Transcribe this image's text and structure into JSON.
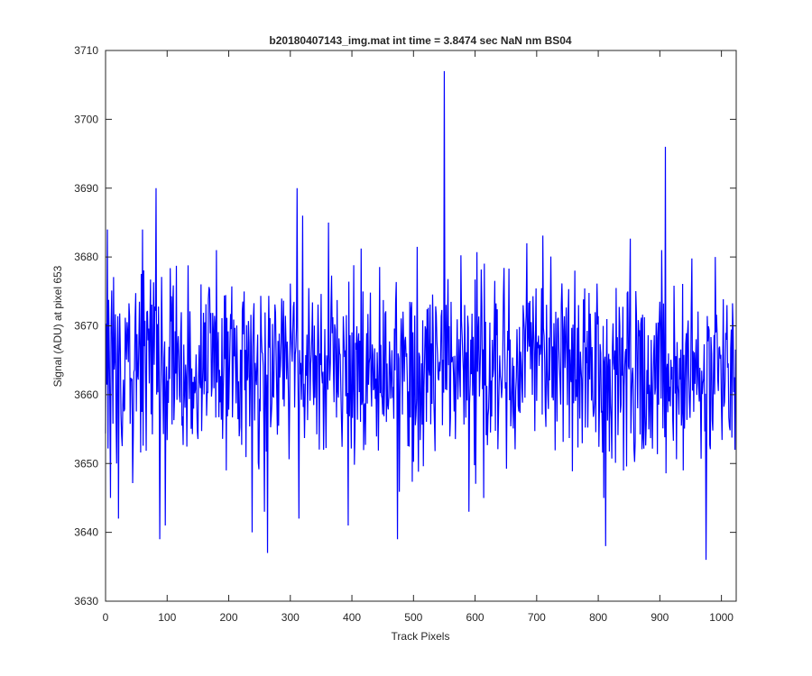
{
  "chart_data": {
    "type": "line",
    "title": "b20180407143_img.mat int time = 3.8474 sec  NaN nm BS04",
    "xlabel": "Track Pixels",
    "ylabel": "Signal (ADU) at pixel 653",
    "xlim": [
      0,
      1024
    ],
    "ylim": [
      3630,
      3710
    ],
    "xticks": [
      0,
      100,
      200,
      300,
      400,
      500,
      600,
      700,
      800,
      900,
      1000
    ],
    "yticks": [
      3630,
      3640,
      3650,
      3660,
      3670,
      3680,
      3690,
      3700,
      3710
    ],
    "grid": false,
    "legend": "none",
    "n_points": 1024,
    "baseline_mean": 3664,
    "noise_halfwidth": 11,
    "series": [
      {
        "color": "#0000ff",
        "peaks": [
          {
            "x": 3,
            "y": 3684
          },
          {
            "x": 8,
            "y": 3645
          },
          {
            "x": 18,
            "y": 3650
          },
          {
            "x": 21,
            "y": 3642
          },
          {
            "x": 60,
            "y": 3684
          },
          {
            "x": 82,
            "y": 3690
          },
          {
            "x": 88,
            "y": 3639
          },
          {
            "x": 97,
            "y": 3641
          },
          {
            "x": 180,
            "y": 3681
          },
          {
            "x": 196,
            "y": 3649
          },
          {
            "x": 238,
            "y": 3640
          },
          {
            "x": 258,
            "y": 3643
          },
          {
            "x": 263,
            "y": 3637
          },
          {
            "x": 311,
            "y": 3690
          },
          {
            "x": 314,
            "y": 3642
          },
          {
            "x": 320,
            "y": 3686
          },
          {
            "x": 362,
            "y": 3685
          },
          {
            "x": 394,
            "y": 3641
          },
          {
            "x": 474,
            "y": 3639
          },
          {
            "x": 550,
            "y": 3707
          },
          {
            "x": 590,
            "y": 3643
          },
          {
            "x": 614,
            "y": 3645
          },
          {
            "x": 684,
            "y": 3682
          },
          {
            "x": 809,
            "y": 3645
          },
          {
            "x": 812,
            "y": 3638
          },
          {
            "x": 903,
            "y": 3681
          },
          {
            "x": 909,
            "y": 3696
          },
          {
            "x": 938,
            "y": 3649
          },
          {
            "x": 975,
            "y": 3636
          },
          {
            "x": 990,
            "y": 3680
          },
          {
            "x": 1022,
            "y": 3652
          }
        ]
      }
    ]
  }
}
